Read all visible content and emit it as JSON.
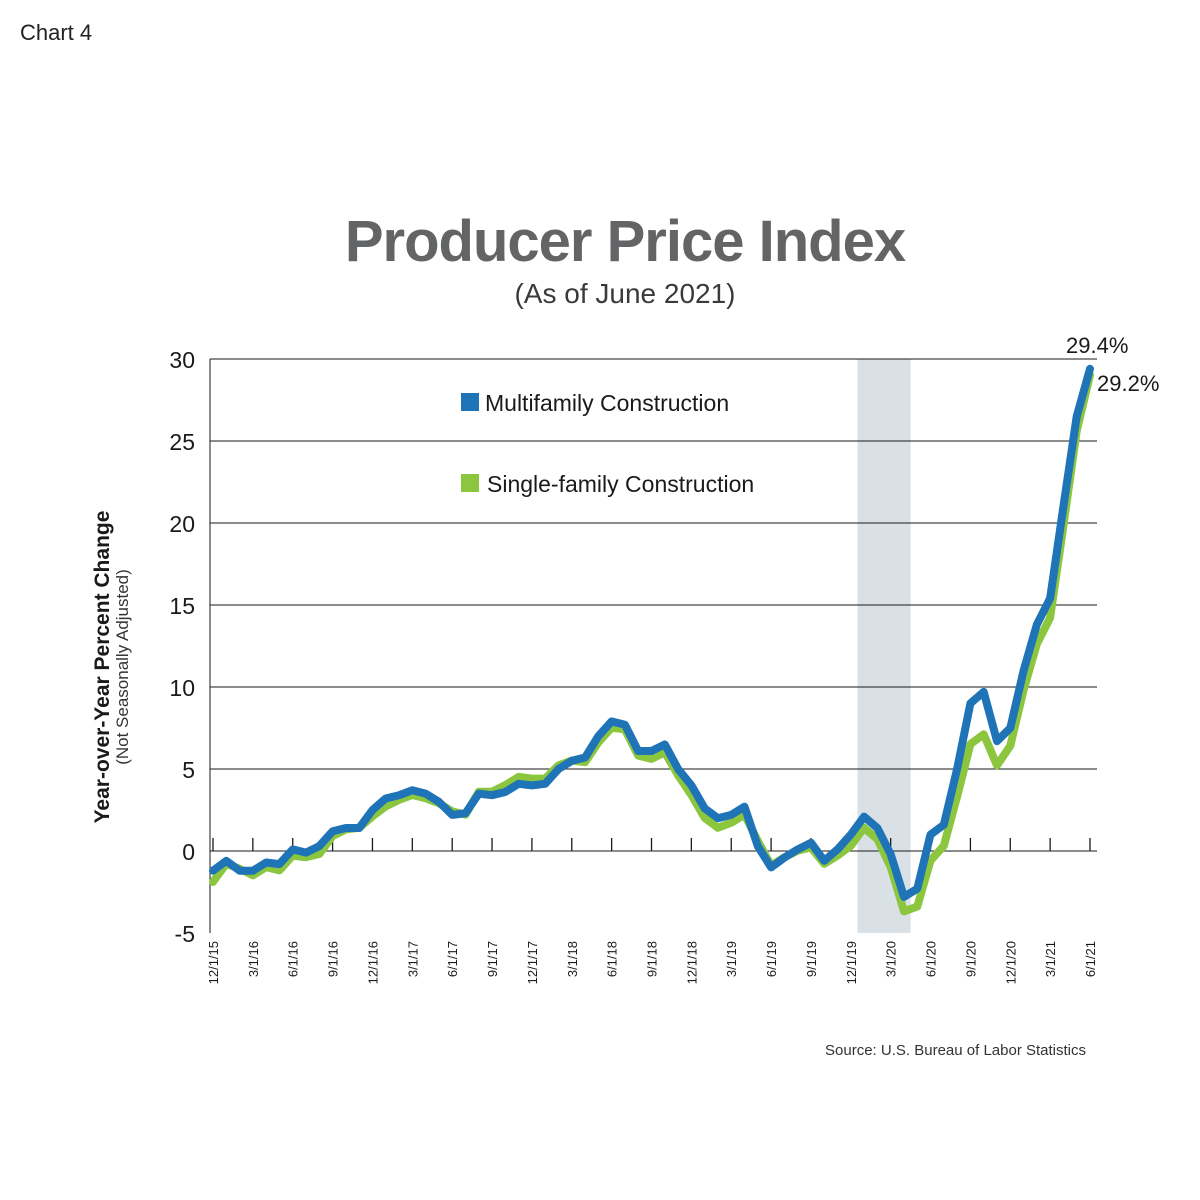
{
  "header": {
    "chart_label": "Chart 4",
    "title": "Producer Price Index",
    "subtitle": "(As of June 2021)"
  },
  "footer": {
    "source": "Source: U.S. Bureau of Labor Statistics"
  },
  "chart_data": {
    "type": "line",
    "title": "Producer Price Index",
    "subtitle": "(As of June 2021)",
    "ylabel": "Year-over-Year Percent Change",
    "ylabel_sub": "(Not Seasonally Adjusted)",
    "xlabel": "",
    "ylim": [
      -5,
      30
    ],
    "yticks": [
      -5,
      0,
      5,
      10,
      15,
      20,
      25,
      30
    ],
    "grid": "horizontal",
    "legend_position": "top-left",
    "x": [
      "12/1/15",
      "1/1/16",
      "2/1/16",
      "3/1/16",
      "4/1/16",
      "5/1/16",
      "6/1/16",
      "7/1/16",
      "8/1/16",
      "9/1/16",
      "10/1/16",
      "11/1/16",
      "12/1/16",
      "1/1/17",
      "2/1/17",
      "3/1/17",
      "4/1/17",
      "5/1/17",
      "6/1/17",
      "7/1/17",
      "8/1/17",
      "9/1/17",
      "10/1/17",
      "11/1/17",
      "12/1/17",
      "1/1/18",
      "2/1/18",
      "3/1/18",
      "4/1/18",
      "5/1/18",
      "6/1/18",
      "7/1/18",
      "8/1/18",
      "9/1/18",
      "10/1/18",
      "11/1/18",
      "12/1/18",
      "1/1/19",
      "2/1/19",
      "3/1/19",
      "4/1/19",
      "5/1/19",
      "6/1/19",
      "7/1/19",
      "8/1/19",
      "9/1/19",
      "10/1/19",
      "11/1/19",
      "12/1/19",
      "1/1/20",
      "2/1/20",
      "3/1/20",
      "4/1/20",
      "5/1/20",
      "6/1/20",
      "7/1/20",
      "8/1/20",
      "9/1/20",
      "10/1/20",
      "11/1/20",
      "12/1/20",
      "1/1/21",
      "2/1/21",
      "3/1/21",
      "4/1/21",
      "5/1/21",
      "6/1/21"
    ],
    "xtick_labels": [
      "12/1/15",
      "3/1/16",
      "6/1/16",
      "9/1/16",
      "12/1/16",
      "3/1/17",
      "6/1/17",
      "9/1/17",
      "12/1/17",
      "3/1/18",
      "6/1/18",
      "9/1/18",
      "12/1/18",
      "3/1/19",
      "6/1/19",
      "9/1/19",
      "12/1/19",
      "3/1/20",
      "6/1/20",
      "9/1/20",
      "12/1/20",
      "3/1/21",
      "6/1/21"
    ],
    "shaded_region": {
      "start": "1/1/20",
      "end": "4/1/20",
      "color": "#d9e1e7"
    },
    "series": [
      {
        "name": "Multifamily Construction",
        "color": "#1f73b7",
        "values": [
          -1.2,
          -0.6,
          -1.2,
          -1.2,
          -0.7,
          -0.8,
          0.1,
          -0.1,
          0.3,
          1.2,
          1.4,
          1.4,
          2.5,
          3.2,
          3.4,
          3.7,
          3.5,
          3.0,
          2.2,
          2.3,
          3.5,
          3.4,
          3.6,
          4.1,
          4.0,
          4.1,
          5.0,
          5.5,
          5.7,
          7.0,
          7.9,
          7.7,
          6.1,
          6.1,
          6.5,
          5.0,
          4.0,
          2.6,
          2.0,
          2.2,
          2.7,
          0.3,
          -1.0,
          -0.4,
          0.1,
          0.5,
          -0.6,
          0.1,
          1.0,
          2.1,
          1.4,
          -0.2,
          -2.8,
          -2.3,
          1.0,
          1.6,
          5.0,
          9.0,
          9.7,
          6.7,
          7.5,
          11.0,
          13.8,
          15.4,
          21.0,
          26.5,
          29.4
        ],
        "end_label": "29.4%"
      },
      {
        "name": "Single-family Construction",
        "color": "#8cc63f",
        "values": [
          -1.7,
          -0.6,
          -0.9,
          -1.3,
          -0.8,
          -1.0,
          -0.1,
          -0.2,
          0.0,
          1.1,
          1.5,
          1.6,
          2.3,
          2.9,
          3.3,
          3.6,
          3.4,
          3.1,
          2.6,
          2.4,
          3.8,
          3.8,
          4.2,
          4.7,
          4.6,
          4.6,
          5.4,
          5.7,
          5.6,
          6.8,
          7.7,
          7.6,
          6.0,
          5.8,
          6.2,
          4.8,
          3.6,
          2.2,
          1.6,
          1.9,
          2.4,
          0.8,
          -0.7,
          -0.2,
          0.2,
          0.4,
          -0.6,
          -0.1,
          0.5,
          1.6,
          0.9,
          -0.8,
          -3.5,
          -3.2,
          -0.4,
          0.5,
          3.5,
          6.7,
          7.3,
          5.4,
          6.6,
          10.0,
          12.8,
          14.4,
          20.0,
          25.8,
          29.2
        ],
        "end_label": "29.2%"
      }
    ]
  }
}
